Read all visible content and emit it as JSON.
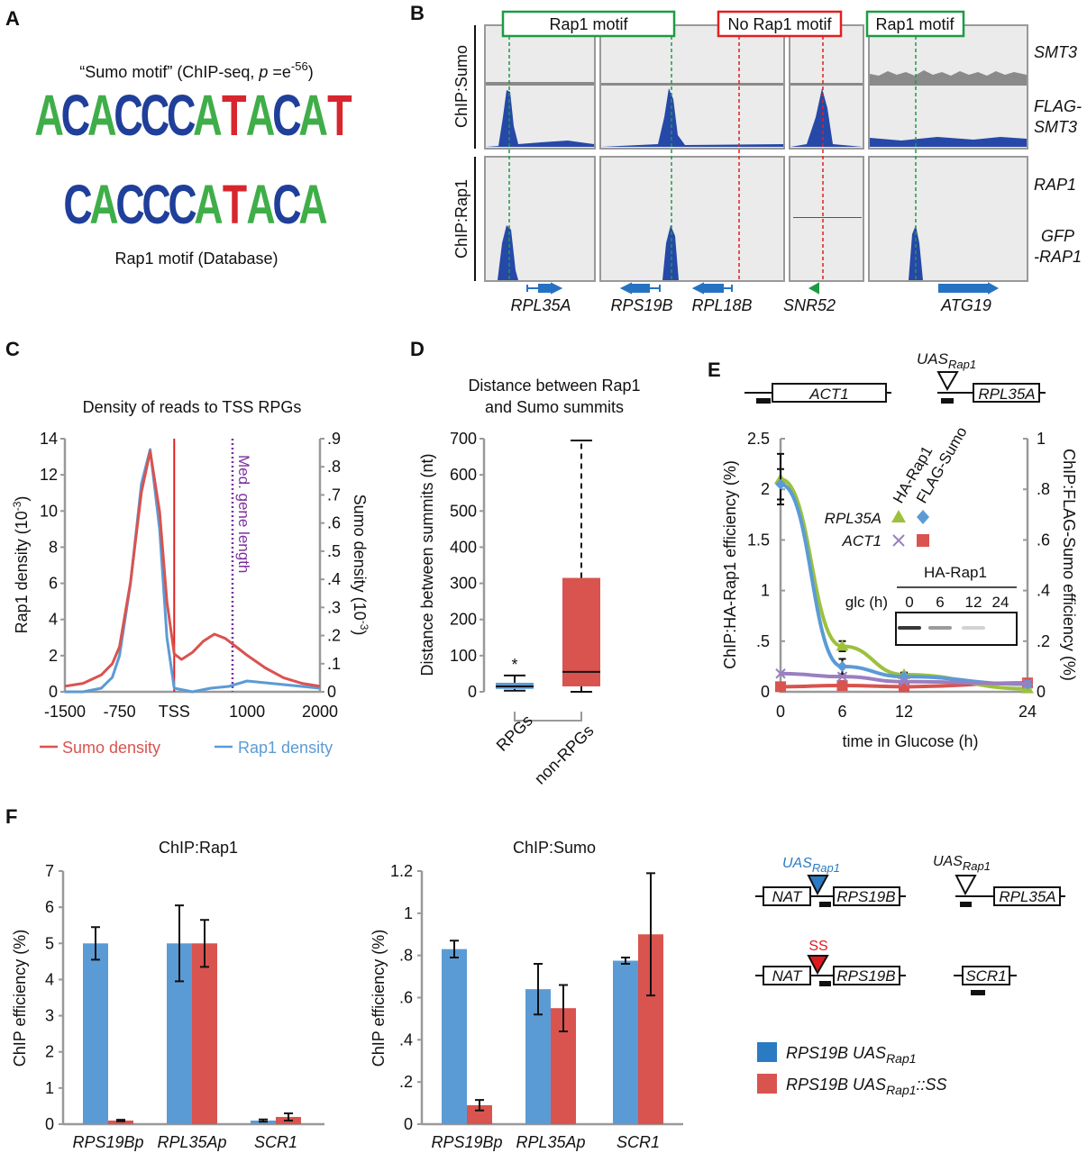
{
  "panels": {
    "a": "A",
    "b": "B",
    "c": "C",
    "d": "D",
    "e": "E",
    "f": "F"
  },
  "panel_a": {
    "title_pre": "“Sumo motif” (ChIP-seq, ",
    "title_p": "p",
    "title_eq": " =e",
    "title_exp": "-56",
    "title_post": ")",
    "sumo_motif": "ACACCCATACAT",
    "rap1_motif": "CACCCATACA",
    "caption": "Rap1 motif (Database)",
    "colors": {
      "A": "#3fae49",
      "C": "#1f3f9a",
      "G": "#f2a81f",
      "T": "#d8262e"
    }
  },
  "panel_b": {
    "motif_labels": [
      "Rap1 motif",
      "No Rap1 motif",
      "Rap1 motif"
    ],
    "group_labels": [
      "ChIP:Sumo",
      "ChIP:Rap1"
    ],
    "track_labels": [
      "SMT3",
      "FLAG-",
      "SMT3",
      "RAP1",
      "GFP",
      "-RAP1"
    ],
    "genes": [
      "RPL35A",
      "RPS19B",
      "RPL18B",
      "SNR52",
      "ATG19"
    ]
  },
  "chart_data": [
    {
      "id": "C",
      "type": "line",
      "title": "Density of reads to TSS RPGs",
      "xlabel": "",
      "ylabel": "Rap1 density (10-3)",
      "ylabel_base": "Rap1 density (10",
      "ylabel_exp": "-3",
      "ylabel_end": ")",
      "y2label_base": "Sumo density (10",
      "y2label_exp": "-3",
      "y2label_end": ")",
      "xlim": [
        -1500,
        2000
      ],
      "ylim": [
        0,
        14
      ],
      "y2lim": [
        0,
        0.9
      ],
      "xticks": [
        "-1500",
        "-750",
        "TSS",
        "1000",
        "2000"
      ],
      "xtick_values": [
        -1500,
        -750,
        0,
        1000,
        2000
      ],
      "yticks": [
        "0",
        "2",
        "4",
        "6",
        "8",
        "10",
        "12",
        "14"
      ],
      "y2ticks": [
        "0",
        ".1",
        ".2",
        ".3",
        ".4",
        ".5",
        ".6",
        ".7",
        ".8",
        ".9"
      ],
      "annotation": "Med. gene length",
      "annotation_x": 800,
      "tss_line_x": 0,
      "legend_placement": "bottom",
      "series": [
        {
          "name": "Sumo density",
          "axis": "right",
          "color": "#d9534f",
          "x": [
            -1500,
            -1250,
            -1000,
            -850,
            -750,
            -600,
            -450,
            -330,
            -200,
            -100,
            0,
            100,
            250,
            400,
            550,
            700,
            850,
            1000,
            1250,
            1500,
            1750,
            2000
          ],
          "y": [
            0.02,
            0.03,
            0.06,
            0.1,
            0.16,
            0.39,
            0.71,
            0.855,
            0.64,
            0.32,
            0.135,
            0.115,
            0.14,
            0.18,
            0.205,
            0.19,
            0.16,
            0.13,
            0.085,
            0.05,
            0.03,
            0.02
          ]
        },
        {
          "name": "Rap1 density",
          "axis": "left",
          "color": "#5b9bd5",
          "x": [
            -1500,
            -1250,
            -1000,
            -850,
            -750,
            -600,
            -450,
            -330,
            -200,
            -100,
            0,
            250,
            500,
            750,
            1000,
            1250,
            1500,
            1750,
            2000
          ],
          "y": [
            0,
            0,
            0.2,
            0.8,
            2,
            6,
            11.5,
            13.4,
            9,
            3,
            0.2,
            0,
            0.2,
            0.3,
            0.6,
            0.5,
            0.4,
            0.3,
            0.2
          ]
        }
      ]
    },
    {
      "id": "D",
      "type": "box",
      "title_line1": "Distance between Rap1",
      "title_line2": "and Sumo summits",
      "ylabel": "Distance between summits (nt)",
      "ylim": [
        0,
        700
      ],
      "yticks": [
        "0",
        "100",
        "200",
        "300",
        "400",
        "500",
        "600",
        "700"
      ],
      "categories": [
        "RPGs",
        "non-RPGs"
      ],
      "boxes": [
        {
          "name": "RPGs",
          "min": 3,
          "q1": 8,
          "median": 15,
          "q3": 25,
          "max": 45,
          "color": "#5b9bd5",
          "annotation": "*"
        },
        {
          "name": "non-RPGs",
          "min": 0,
          "q1": 15,
          "median": 55,
          "q3": 315,
          "max": 695,
          "color": "#d9534f"
        }
      ]
    },
    {
      "id": "E",
      "type": "line",
      "xlabel": "time in Glucose (h)",
      "ylabel": "ChIP:HA-Rap1 efficiency (%)",
      "y2label": "ChIP:FLAG-Sumo efficiency (%)",
      "xlim": [
        0,
        24
      ],
      "ylim": [
        0,
        2.5
      ],
      "y2lim": [
        0,
        1
      ],
      "xticks": [
        "0",
        "6",
        "12",
        "24"
      ],
      "yticks": [
        "0",
        ".5",
        "1",
        "1.5",
        "2",
        "2.5"
      ],
      "y2ticks": [
        "0",
        ".2",
        ".4",
        ".6",
        ".8",
        "1"
      ],
      "legend_cols": [
        "HA-Rap1",
        "FLAG-Sumo"
      ],
      "legend_rows": [
        "RPL35A",
        "ACT1"
      ],
      "series": [
        {
          "name": "RPL35A HA-Rap1",
          "axis": "left",
          "color": "#9dc13b",
          "marker": "triangle",
          "x": [
            0,
            6,
            12,
            24
          ],
          "y": [
            2.1,
            0.45,
            0.17,
            0.03
          ],
          "err": [
            0.25,
            0.05,
            0.02,
            0.01
          ]
        },
        {
          "name": "RPL35A FLAG-Sumo",
          "axis": "right",
          "color": "#5b9bd5",
          "marker": "diamond",
          "x": [
            0,
            6,
            12,
            24
          ],
          "y": [
            0.82,
            0.1,
            0.06,
            0.03
          ],
          "err": [
            0.06,
            0.03,
            0.01,
            0.01
          ]
        },
        {
          "name": "ACT1 HA-Rap1",
          "axis": "left",
          "color": "#9b7fc0",
          "marker": "x",
          "x": [
            0,
            6,
            12,
            24
          ],
          "y": [
            0.18,
            0.15,
            0.1,
            0.08
          ],
          "err": [
            0,
            0,
            0,
            0
          ]
        },
        {
          "name": "ACT1 FLAG-Sumo",
          "axis": "right",
          "color": "#d9534f",
          "marker": "square",
          "x": [
            0,
            6,
            12,
            24
          ],
          "y": [
            0.02,
            0.025,
            0.02,
            0.035
          ],
          "err": [
            0,
            0,
            0,
            0
          ]
        }
      ],
      "inset": {
        "title": "HA-Rap1",
        "row_label": "glc (h)",
        "lanes": [
          "0",
          "6",
          "12",
          "24"
        ],
        "band_intensity": [
          0.9,
          0.45,
          0.2,
          0.0
        ]
      },
      "diagram": {
        "gene1": "ACT1",
        "gene2": "RPL35A",
        "uas": "UAS",
        "uas_sub": "Rap1"
      }
    },
    {
      "id": "F1",
      "type": "bar",
      "title": "ChIP:Rap1",
      "ylabel": "ChIP efficiency (%)",
      "ylim": [
        0,
        7
      ],
      "yticks": [
        "0",
        "1",
        "2",
        "3",
        "4",
        "5",
        "6",
        "7"
      ],
      "categories": [
        "RPS19Bp",
        "RPL35Ap",
        "SCR1"
      ],
      "series": [
        {
          "name": "RPS19B UASRap1",
          "color": "#5b9bd5",
          "values": [
            5.0,
            5.0,
            0.1
          ],
          "err": [
            0.45,
            1.05,
            0.03
          ]
        },
        {
          "name": "RPS19B UASRap1::SS",
          "color": "#d9534f",
          "values": [
            0.1,
            5.0,
            0.2
          ],
          "err": [
            0.02,
            0.65,
            0.1
          ]
        }
      ]
    },
    {
      "id": "F2",
      "type": "bar",
      "title": "ChIP:Sumo",
      "ylabel": "ChIP efficiency (%)",
      "ylim": [
        0,
        1.2
      ],
      "yticks": [
        "0",
        ".2",
        ".4",
        ".6",
        ".8",
        "1",
        "1.2"
      ],
      "categories": [
        "RPS19Bp",
        "RPL35Ap",
        "SCR1"
      ],
      "series": [
        {
          "name": "RPS19B UASRap1",
          "color": "#5b9bd5",
          "values": [
            0.83,
            0.64,
            0.775
          ],
          "err": [
            0.04,
            0.12,
            0.015
          ]
        },
        {
          "name": "RPS19B UASRap1::SS",
          "color": "#d9534f",
          "values": [
            0.09,
            0.55,
            0.9
          ],
          "err": [
            0.025,
            0.11,
            0.29
          ]
        }
      ]
    }
  ],
  "panel_f": {
    "uas": "UAS",
    "uas_sub": "Rap1",
    "ss": "SS",
    "nat": "NAT",
    "rps19b": "RPS19B",
    "rpl35a": "RPL35A",
    "scr1": "SCR1",
    "legend": [
      {
        "pre": "RPS19B UAS",
        "sub": "Rap1",
        "post": ""
      },
      {
        "pre": "RPS19B UAS",
        "sub": "Rap1",
        "post": "::SS"
      }
    ]
  }
}
